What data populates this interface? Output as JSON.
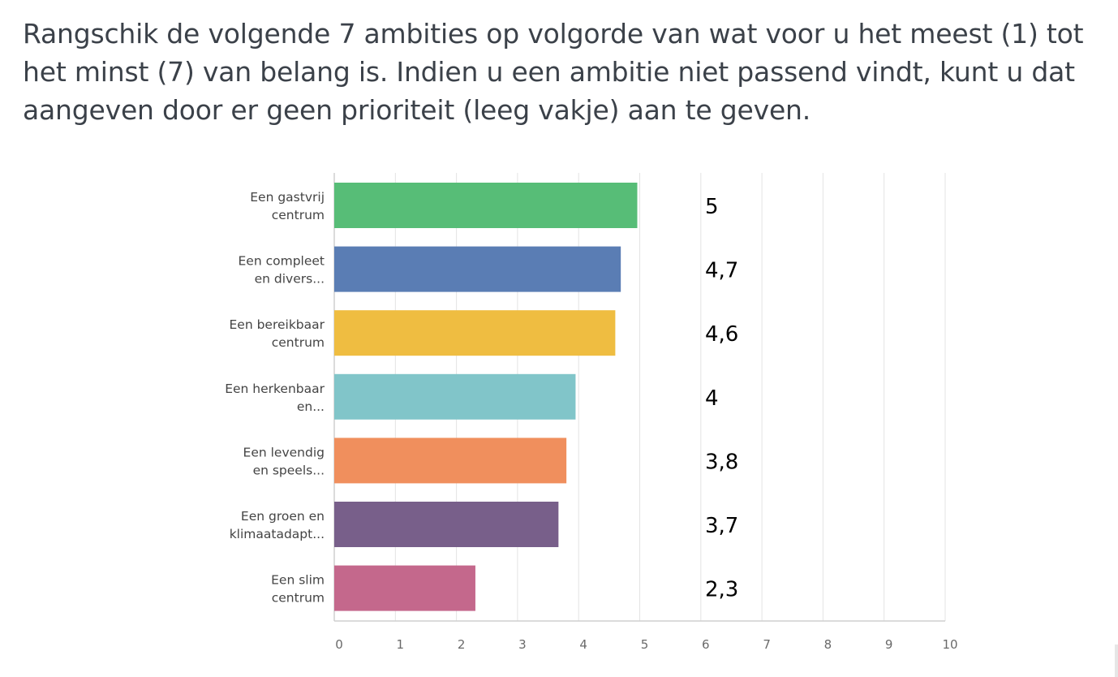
{
  "question": {
    "text": "Rangschik de volgende 7 ambities op volgorde van wat voor u het meest (1) tot het minst (7) van belang is. Indien u een ambitie niet passend vindt, kunt u dat aangeven door er geen prioriteit (leeg vakje) aan te geven."
  },
  "chart_data": {
    "type": "bar",
    "orientation": "horizontal",
    "categories": [
      [
        "Een gastvrij",
        "centrum"
      ],
      [
        "Een compleet",
        "en divers..."
      ],
      [
        "Een bereikbaar",
        "centrum"
      ],
      [
        "Een herkenbaar",
        "en..."
      ],
      [
        "Een levendig",
        "en speels..."
      ],
      [
        "Een groen en",
        "klimaatadapt..."
      ],
      [
        "Een slim",
        "centrum"
      ]
    ],
    "values": [
      4.96,
      4.69,
      4.6,
      3.95,
      3.8,
      3.67,
      2.31
    ],
    "value_labels": [
      "5",
      "4,7",
      "4,6",
      "4",
      "3,8",
      "3,7",
      "2,3"
    ],
    "colors": [
      "#57bd77",
      "#5a7db4",
      "#efbd41",
      "#81c5c9",
      "#f08f5d",
      "#785f8a",
      "#c4688c"
    ],
    "xlim": [
      0,
      10
    ],
    "x_ticks": [
      "0",
      "1",
      "2",
      "3",
      "4",
      "5",
      "6",
      "7",
      "8",
      "9",
      "10"
    ],
    "grid": true,
    "grid_color": "#e3e3e3",
    "axis_color": "#cfcfcf"
  }
}
